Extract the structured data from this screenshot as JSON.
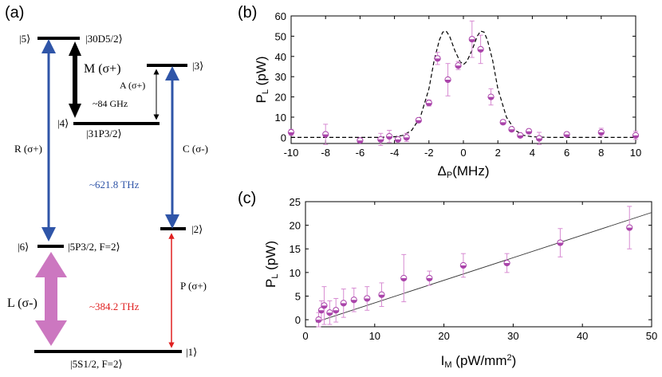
{
  "panels": {
    "a": {
      "label": "(a)",
      "levels": {
        "l5": {
          "left": "|5⟩",
          "right": "|30D5/2⟩"
        },
        "l3": {
          "right": "|3⟩"
        },
        "l4": {
          "left": "|4⟩",
          "right": "|31P3/2⟩"
        },
        "l2": {
          "right": "|2⟩"
        },
        "l6": {
          "left": "|6⟩",
          "right": "|5P3/2, F=2⟩"
        },
        "l1": {
          "right": "|1⟩",
          "bottom": "|5S1/2, F=2⟩"
        }
      },
      "transitions": {
        "M": "M (σ+)",
        "A": "A (σ+)",
        "R": "R (σ+)",
        "C": "C (σ-)",
        "L": "L (σ-)",
        "P": "P (σ+)"
      },
      "annotations": {
        "ghz": "~84 GHz",
        "thz_blue": "~621.8 THz",
        "thz_red": "~384.2 THz"
      },
      "colors": {
        "blue": "#2f55a8",
        "red": "#e02020",
        "magenta": "#cc77c0",
        "black": "#000000"
      }
    },
    "b": {
      "label": "(b)",
      "chart_data": {
        "type": "scatter",
        "xlabel": "ΔP(MHz)",
        "ylabel": "PL (pW)",
        "xlim": [
          -10,
          10
        ],
        "ylim": [
          -3,
          60
        ],
        "xticks": [
          -10,
          -8,
          -6,
          -4,
          -2,
          0,
          2,
          4,
          6,
          8,
          10
        ],
        "yticks": [
          0,
          10,
          20,
          30,
          40,
          50,
          60
        ],
        "points": [
          {
            "x": -10,
            "y": 2.5,
            "err": 1.5
          },
          {
            "x": -8,
            "y": 1.5,
            "err": 5
          },
          {
            "x": -6,
            "y": -1.5,
            "err": 1
          },
          {
            "x": -4.8,
            "y": -1,
            "err": 3
          },
          {
            "x": -4.3,
            "y": 0.5,
            "err": 3
          },
          {
            "x": -3.8,
            "y": -1,
            "err": 1
          },
          {
            "x": -3.3,
            "y": 0,
            "err": 2
          },
          {
            "x": -2.6,
            "y": 8.5,
            "err": 1
          },
          {
            "x": -2,
            "y": 17,
            "err": 1.5
          },
          {
            "x": -1.5,
            "y": 39,
            "err": 3
          },
          {
            "x": -0.9,
            "y": 28.5,
            "err": 8
          },
          {
            "x": -0.3,
            "y": 35.5,
            "err": 2
          },
          {
            "x": 0.5,
            "y": 48.5,
            "err": 9
          },
          {
            "x": 1,
            "y": 43.5,
            "err": 7
          },
          {
            "x": 1.6,
            "y": 20,
            "err": 4
          },
          {
            "x": 2.3,
            "y": 7.5,
            "err": 1
          },
          {
            "x": 2.8,
            "y": 4,
            "err": 1
          },
          {
            "x": 3.3,
            "y": 1,
            "err": 1
          },
          {
            "x": 3.8,
            "y": 3,
            "err": 1
          },
          {
            "x": 4.4,
            "y": -0.5,
            "err": 3
          },
          {
            "x": 6,
            "y": 1.5,
            "err": 1
          },
          {
            "x": 8,
            "y": 2.5,
            "err": 2
          },
          {
            "x": 10,
            "y": 1,
            "err": 2
          }
        ],
        "fit_curve": [
          [
            -10,
            0
          ],
          [
            -5,
            0
          ],
          [
            -4,
            0.3
          ],
          [
            -3.5,
            1
          ],
          [
            -3,
            3.5
          ],
          [
            -2.5,
            10
          ],
          [
            -2,
            24
          ],
          [
            -1.7,
            38
          ],
          [
            -1.4,
            48
          ],
          [
            -1.2,
            52
          ],
          [
            -1,
            52.5
          ],
          [
            -0.8,
            50
          ],
          [
            -0.5,
            43
          ],
          [
            -0.2,
            37.5
          ],
          [
            0,
            36
          ],
          [
            0.2,
            37.5
          ],
          [
            0.5,
            43
          ],
          [
            0.8,
            50
          ],
          [
            1,
            52.5
          ],
          [
            1.2,
            52
          ],
          [
            1.4,
            48
          ],
          [
            1.7,
            38
          ],
          [
            2,
            24
          ],
          [
            2.5,
            10
          ],
          [
            3,
            3.5
          ],
          [
            3.5,
            1
          ],
          [
            4,
            0.3
          ],
          [
            5,
            0
          ],
          [
            10,
            0
          ]
        ],
        "marker_color": "#aa44aa",
        "errorbar_color": "#d78bd2"
      }
    },
    "c": {
      "label": "(c)",
      "chart_data": {
        "type": "scatter",
        "xlabel": "IM (pW/mm2)",
        "ylabel": "PL (pW)",
        "xlim": [
          0,
          50
        ],
        "ylim": [
          -1.5,
          25
        ],
        "xticks": [
          0,
          10,
          20,
          30,
          40,
          50
        ],
        "yticks": [
          0,
          5,
          10,
          15,
          20,
          25
        ],
        "points": [
          {
            "x": 1.9,
            "y": 0,
            "err": 1.5
          },
          {
            "x": 2.3,
            "y": 2,
            "err": 2
          },
          {
            "x": 2.7,
            "y": 3,
            "err": 4
          },
          {
            "x": 3.5,
            "y": 1.5,
            "err": 2.5
          },
          {
            "x": 4.4,
            "y": 2,
            "err": 2.5
          },
          {
            "x": 5.5,
            "y": 3.5,
            "err": 3
          },
          {
            "x": 7,
            "y": 4.2,
            "err": 2.5
          },
          {
            "x": 8.9,
            "y": 4.5,
            "err": 2.5
          },
          {
            "x": 11,
            "y": 5.3,
            "err": 2.5
          },
          {
            "x": 14.2,
            "y": 8.8,
            "err": 5
          },
          {
            "x": 17.9,
            "y": 8.8,
            "err": 1.5
          },
          {
            "x": 22.8,
            "y": 11.5,
            "err": 2.5
          },
          {
            "x": 29.1,
            "y": 12,
            "err": 2
          },
          {
            "x": 36.8,
            "y": 16.3,
            "err": 3
          },
          {
            "x": 46.8,
            "y": 19.5,
            "err": 4.5
          }
        ],
        "fit_line": [
          [
            1.5,
            -0.5
          ],
          [
            50,
            22.7
          ]
        ],
        "marker_color": "#aa44aa",
        "errorbar_color": "#d78bd2"
      }
    }
  }
}
